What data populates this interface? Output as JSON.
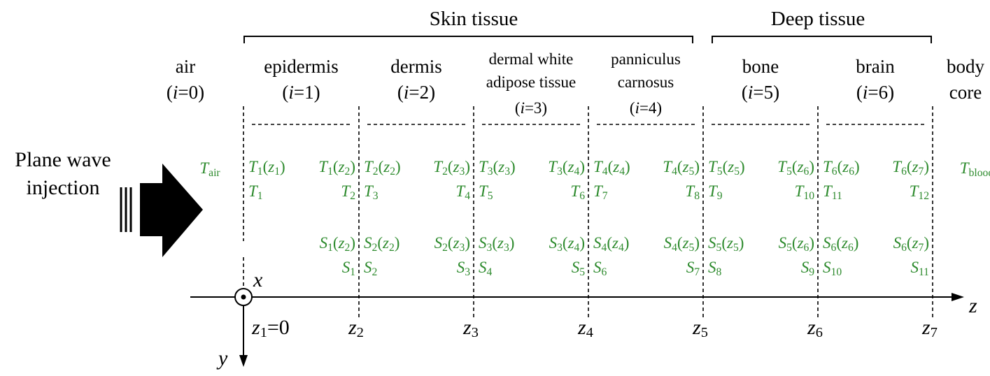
{
  "groups": [
    "Skin tissue",
    "Deep tissue"
  ],
  "source": [
    "Plane wave",
    "injection"
  ],
  "layers": [
    {
      "name": [
        "air"
      ],
      "index": [
        [
          "(",
          "n"
        ],
        [
          "i",
          "i"
        ],
        [
          "=0)",
          "n"
        ]
      ],
      "labels": {
        "c": [
          [
            "T",
            "i"
          ],
          [
            "air",
            "s"
          ]
        ]
      }
    },
    {
      "name": [
        "epidermis"
      ],
      "index": [
        [
          "(",
          "n"
        ],
        [
          "i",
          "i"
        ],
        [
          "=1)",
          "n"
        ]
      ],
      "labels": {
        "tl": [
          [
            "T",
            "i"
          ],
          [
            "1",
            "s"
          ],
          [
            "(",
            "n"
          ],
          [
            "z",
            "i"
          ],
          [
            "1",
            "s"
          ],
          [
            ")",
            "n"
          ]
        ],
        "tr": [
          [
            "T",
            "i"
          ],
          [
            "1",
            "s"
          ],
          [
            "(",
            "n"
          ],
          [
            "z",
            "i"
          ],
          [
            "2",
            "s"
          ],
          [
            ")",
            "n"
          ]
        ],
        "bl": [
          [
            "T",
            "i"
          ],
          [
            "1",
            "s"
          ]
        ],
        "br": [
          [
            "T",
            "i"
          ],
          [
            "2",
            "s"
          ]
        ],
        "sr": [
          [
            "S",
            "i"
          ],
          [
            "1",
            "s"
          ],
          [
            "(",
            "n"
          ],
          [
            "z",
            "i"
          ],
          [
            "2",
            "s"
          ],
          [
            ")",
            "n"
          ]
        ],
        "sbr": [
          [
            "S",
            "i"
          ],
          [
            "1",
            "s"
          ]
        ]
      }
    },
    {
      "name": [
        "dermis"
      ],
      "index": [
        [
          "(",
          "n"
        ],
        [
          "i",
          "i"
        ],
        [
          "=2)",
          "n"
        ]
      ],
      "labels": {
        "tl": [
          [
            "T",
            "i"
          ],
          [
            "2",
            "s"
          ],
          [
            "(",
            "n"
          ],
          [
            "z",
            "i"
          ],
          [
            "2",
            "s"
          ],
          [
            ")",
            "n"
          ]
        ],
        "tr": [
          [
            "T",
            "i"
          ],
          [
            "2",
            "s"
          ],
          [
            "(",
            "n"
          ],
          [
            "z",
            "i"
          ],
          [
            "3",
            "s"
          ],
          [
            ")",
            "n"
          ]
        ],
        "bl": [
          [
            "T",
            "i"
          ],
          [
            "3",
            "s"
          ]
        ],
        "br": [
          [
            "T",
            "i"
          ],
          [
            "4",
            "s"
          ]
        ],
        "sl": [
          [
            "S",
            "i"
          ],
          [
            "2",
            "s"
          ],
          [
            "(",
            "n"
          ],
          [
            "z",
            "i"
          ],
          [
            "2",
            "s"
          ],
          [
            ")",
            "n"
          ]
        ],
        "sr": [
          [
            "S",
            "i"
          ],
          [
            "2",
            "s"
          ],
          [
            "(",
            "n"
          ],
          [
            "z",
            "i"
          ],
          [
            "3",
            "s"
          ],
          [
            ")",
            "n"
          ]
        ],
        "sbl": [
          [
            "S",
            "i"
          ],
          [
            "2",
            "s"
          ]
        ],
        "sbr": [
          [
            "S",
            "i"
          ],
          [
            "3",
            "s"
          ]
        ]
      }
    },
    {
      "name": [
        "dermal white",
        "adipose tissue"
      ],
      "index": [
        [
          "(",
          "n"
        ],
        [
          "i",
          "i"
        ],
        [
          "=3)",
          "n"
        ]
      ],
      "labels": {
        "tl": [
          [
            "T",
            "i"
          ],
          [
            "3",
            "s"
          ],
          [
            "(",
            "n"
          ],
          [
            "z",
            "i"
          ],
          [
            "3",
            "s"
          ],
          [
            ")",
            "n"
          ]
        ],
        "tr": [
          [
            "T",
            "i"
          ],
          [
            "3",
            "s"
          ],
          [
            "(",
            "n"
          ],
          [
            "z",
            "i"
          ],
          [
            "4",
            "s"
          ],
          [
            ")",
            "n"
          ]
        ],
        "bl": [
          [
            "T",
            "i"
          ],
          [
            "5",
            "s"
          ]
        ],
        "br": [
          [
            "T",
            "i"
          ],
          [
            "6",
            "s"
          ]
        ],
        "sl": [
          [
            "S",
            "i"
          ],
          [
            "3",
            "s"
          ],
          [
            "(",
            "n"
          ],
          [
            "z",
            "i"
          ],
          [
            "3",
            "s"
          ],
          [
            ")",
            "n"
          ]
        ],
        "sr": [
          [
            "S",
            "i"
          ],
          [
            "3",
            "s"
          ],
          [
            "(",
            "n"
          ],
          [
            "z",
            "i"
          ],
          [
            "4",
            "s"
          ],
          [
            ")",
            "n"
          ]
        ],
        "sbl": [
          [
            "S",
            "i"
          ],
          [
            "4",
            "s"
          ]
        ],
        "sbr": [
          [
            "S",
            "i"
          ],
          [
            "5",
            "s"
          ]
        ]
      }
    },
    {
      "name": [
        "panniculus",
        "carnosus"
      ],
      "index": [
        [
          "(",
          "n"
        ],
        [
          "i",
          "i"
        ],
        [
          "=4)",
          "n"
        ]
      ],
      "labels": {
        "tl": [
          [
            "T",
            "i"
          ],
          [
            "4",
            "s"
          ],
          [
            "(",
            "n"
          ],
          [
            "z",
            "i"
          ],
          [
            "4",
            "s"
          ],
          [
            ")",
            "n"
          ]
        ],
        "tr": [
          [
            "T",
            "i"
          ],
          [
            "4",
            "s"
          ],
          [
            "(",
            "n"
          ],
          [
            "z",
            "i"
          ],
          [
            "5",
            "s"
          ],
          [
            ")",
            "n"
          ]
        ],
        "bl": [
          [
            "T",
            "i"
          ],
          [
            "7",
            "s"
          ]
        ],
        "br": [
          [
            "T",
            "i"
          ],
          [
            "8",
            "s"
          ]
        ],
        "sl": [
          [
            "S",
            "i"
          ],
          [
            "4",
            "s"
          ],
          [
            "(",
            "n"
          ],
          [
            "z",
            "i"
          ],
          [
            "4",
            "s"
          ],
          [
            ")",
            "n"
          ]
        ],
        "sr": [
          [
            "S",
            "i"
          ],
          [
            "4",
            "s"
          ],
          [
            "(",
            "n"
          ],
          [
            "z",
            "i"
          ],
          [
            "5",
            "s"
          ],
          [
            ")",
            "n"
          ]
        ],
        "sbl": [
          [
            "S",
            "i"
          ],
          [
            "6",
            "s"
          ]
        ],
        "sbr": [
          [
            "S",
            "i"
          ],
          [
            "7",
            "s"
          ]
        ]
      }
    },
    {
      "name": [
        "bone"
      ],
      "index": [
        [
          "(",
          "n"
        ],
        [
          "i",
          "i"
        ],
        [
          "=5)",
          "n"
        ]
      ],
      "labels": {
        "tl": [
          [
            "T",
            "i"
          ],
          [
            "5",
            "s"
          ],
          [
            "(",
            "n"
          ],
          [
            "z",
            "i"
          ],
          [
            "5",
            "s"
          ],
          [
            ")",
            "n"
          ]
        ],
        "tr": [
          [
            "T",
            "i"
          ],
          [
            "5",
            "s"
          ],
          [
            "(",
            "n"
          ],
          [
            "z",
            "i"
          ],
          [
            "6",
            "s"
          ],
          [
            ")",
            "n"
          ]
        ],
        "bl": [
          [
            "T",
            "i"
          ],
          [
            "9",
            "s"
          ]
        ],
        "br": [
          [
            "T",
            "i"
          ],
          [
            "10",
            "s"
          ]
        ],
        "sl": [
          [
            "S",
            "i"
          ],
          [
            "5",
            "s"
          ],
          [
            "(",
            "n"
          ],
          [
            "z",
            "i"
          ],
          [
            "5",
            "s"
          ],
          [
            ")",
            "n"
          ]
        ],
        "sr": [
          [
            "S",
            "i"
          ],
          [
            "5",
            "s"
          ],
          [
            "(",
            "n"
          ],
          [
            "z",
            "i"
          ],
          [
            "6",
            "s"
          ],
          [
            ")",
            "n"
          ]
        ],
        "sbl": [
          [
            "S",
            "i"
          ],
          [
            "8",
            "s"
          ]
        ],
        "sbr": [
          [
            "S",
            "i"
          ],
          [
            "9",
            "s"
          ]
        ]
      }
    },
    {
      "name": [
        "brain"
      ],
      "index": [
        [
          "(",
          "n"
        ],
        [
          "i",
          "i"
        ],
        [
          "=6)",
          "n"
        ]
      ],
      "labels": {
        "tl": [
          [
            "T",
            "i"
          ],
          [
            "6",
            "s"
          ],
          [
            "(",
            "n"
          ],
          [
            "z",
            "i"
          ],
          [
            "6",
            "s"
          ],
          [
            ")",
            "n"
          ]
        ],
        "tr": [
          [
            "T",
            "i"
          ],
          [
            "6",
            "s"
          ],
          [
            "(",
            "n"
          ],
          [
            "z",
            "i"
          ],
          [
            "7",
            "s"
          ],
          [
            ")",
            "n"
          ]
        ],
        "bl": [
          [
            "T",
            "i"
          ],
          [
            "11",
            "s"
          ]
        ],
        "br": [
          [
            "T",
            "i"
          ],
          [
            "12",
            "s"
          ]
        ],
        "sl": [
          [
            "S",
            "i"
          ],
          [
            "6",
            "s"
          ],
          [
            "(",
            "n"
          ],
          [
            "z",
            "i"
          ],
          [
            "6",
            "s"
          ],
          [
            ")",
            "n"
          ]
        ],
        "sr": [
          [
            "S",
            "i"
          ],
          [
            "6",
            "s"
          ],
          [
            "(",
            "n"
          ],
          [
            "z",
            "i"
          ],
          [
            "7",
            "s"
          ],
          [
            ")",
            "n"
          ]
        ],
        "sbl": [
          [
            "S",
            "i"
          ],
          [
            "10",
            "s"
          ]
        ],
        "sbr": [
          [
            "S",
            "i"
          ],
          [
            "11",
            "s"
          ]
        ]
      }
    },
    {
      "name": [
        "body",
        "core"
      ],
      "labels": {
        "c": [
          [
            "T",
            "i"
          ],
          [
            "blood",
            "s"
          ]
        ]
      }
    }
  ],
  "axis": {
    "x": "x",
    "y": "y",
    "z": "z",
    "ticks": [
      [
        [
          "z",
          "i"
        ],
        [
          "1",
          "s"
        ],
        [
          "=0",
          "n"
        ]
      ],
      [
        [
          "z",
          "i"
        ],
        [
          "2",
          "s"
        ]
      ],
      [
        [
          "z",
          "i"
        ],
        [
          "3",
          "s"
        ]
      ],
      [
        [
          "z",
          "i"
        ],
        [
          "4",
          "s"
        ]
      ],
      [
        [
          "z",
          "i"
        ],
        [
          "5",
          "s"
        ]
      ],
      [
        [
          "z",
          "i"
        ],
        [
          "6",
          "s"
        ]
      ],
      [
        [
          "z",
          "i"
        ],
        [
          "7",
          "s"
        ]
      ]
    ]
  }
}
